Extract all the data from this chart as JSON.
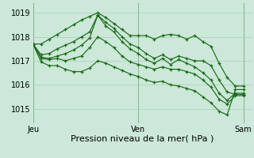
{
  "xlabel": "Pression niveau de la mer( hPa )",
  "background_color": "#cce8d8",
  "grid_color": "#aaccbb",
  "line_color": "#1a6b1a",
  "x_ticks": [
    0,
    13,
    26
  ],
  "x_tick_labels": [
    "Jeu",
    "Ven",
    "Sam"
  ],
  "y_ticks": [
    1015,
    1016,
    1017,
    1018,
    1019
  ],
  "ylim": [
    1014.4,
    1019.4
  ],
  "xlim": [
    0,
    27
  ],
  "series": [
    [
      1017.7,
      1017.7,
      1017.9,
      1018.1,
      1018.3,
      1018.5,
      1018.7,
      1018.85,
      1019.0,
      1018.8,
      1018.55,
      1018.3,
      1018.05,
      1018.05,
      1018.05,
      1017.9,
      1018.05,
      1018.1,
      1018.05,
      1017.9,
      1018.05,
      1017.8,
      1017.6,
      1016.9,
      1016.3,
      1015.95,
      1015.95
    ],
    [
      1017.7,
      1017.25,
      1017.3,
      1017.5,
      1017.65,
      1017.8,
      1018.0,
      1018.2,
      1018.9,
      1018.6,
      1018.35,
      1018.0,
      1017.7,
      1017.55,
      1017.3,
      1017.1,
      1017.25,
      1017.05,
      1017.2,
      1017.1,
      1017.0,
      1017.0,
      1016.8,
      1016.2,
      1015.7,
      1015.6,
      1015.6
    ],
    [
      1017.7,
      1017.15,
      1017.1,
      1017.2,
      1017.3,
      1017.45,
      1017.65,
      1017.95,
      1018.9,
      1018.45,
      1018.2,
      1017.8,
      1017.5,
      1017.3,
      1017.05,
      1016.9,
      1017.1,
      1016.85,
      1017.05,
      1016.9,
      1016.75,
      1016.5,
      1016.2,
      1015.65,
      1015.35,
      1015.65,
      1015.65
    ],
    [
      1017.7,
      1017.1,
      1017.05,
      1017.1,
      1017.0,
      1017.1,
      1017.2,
      1017.55,
      1018.0,
      1017.8,
      1017.55,
      1017.2,
      1016.95,
      1016.85,
      1016.75,
      1016.65,
      1016.75,
      1016.65,
      1016.65,
      1016.55,
      1016.45,
      1016.2,
      1015.9,
      1015.4,
      1015.2,
      1015.55,
      1015.55
    ],
    [
      1017.7,
      1016.95,
      1016.8,
      1016.8,
      1016.65,
      1016.55,
      1016.55,
      1016.7,
      1017.0,
      1016.9,
      1016.75,
      1016.6,
      1016.45,
      1016.35,
      1016.2,
      1016.1,
      1016.15,
      1016.0,
      1015.95,
      1015.85,
      1015.75,
      1015.5,
      1015.25,
      1014.9,
      1014.75,
      1015.8,
      1015.8
    ]
  ],
  "vline_positions": [
    0,
    13,
    26
  ],
  "vline_color": "#446644",
  "tick_fontsize": 7,
  "xlabel_fontsize": 8
}
